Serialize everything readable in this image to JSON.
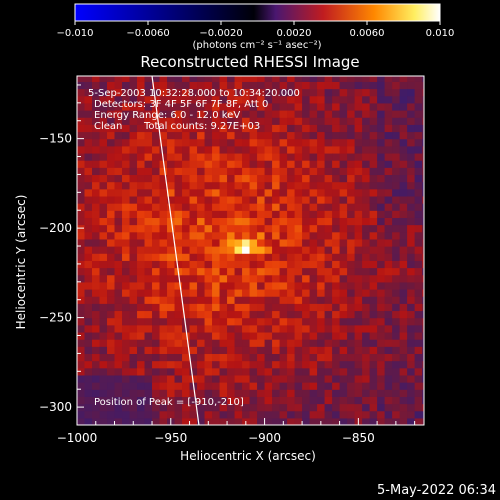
{
  "chart_data": {
    "type": "heatmap",
    "title": "Reconstructed RHESSI Image",
    "xlabel": "Heliocentric X (arcsec)",
    "ylabel": "Heliocentric Y (arcsec)",
    "xlim": [
      -1000,
      -815
    ],
    "ylim": [
      -310,
      -115
    ],
    "x_ticks": [
      "−1000",
      "−950",
      "−900",
      "−850"
    ],
    "x_tick_values": [
      -1000,
      -950,
      -900,
      -850
    ],
    "y_ticks": [
      "−150",
      "−200",
      "−250",
      "−300"
    ],
    "y_tick_values": [
      -150,
      -200,
      -250,
      -300
    ],
    "colorbar": {
      "min": -0.01,
      "max": 0.01,
      "ticks": [
        "−0.010",
        "−0.0060",
        "−0.0020",
        "0.0020",
        "0.0060",
        "0.010"
      ],
      "tick_values": [
        -0.01,
        -0.006,
        -0.002,
        0.002,
        0.006,
        0.01
      ],
      "units": "(photons cm⁻² s⁻¹ asec⁻²)",
      "colormap": [
        "#0000ff",
        "#000000",
        "#5a1a8a",
        "#c81e1e",
        "#ff8c00",
        "#ffff80",
        "#ffffff"
      ]
    },
    "annotations": {
      "time": "5-Sep-2003 10:32:28.000 to 10:34:20.000",
      "detectors": "Detectors: 3F 4F 5F 6F 7F 8F, Att 0",
      "energy": "Energy Range: 6.0 - 12.0 keV",
      "method": "Clean",
      "counts": "Total counts: 9.27E+03",
      "peak": "Position of Peak = [-910,-210]"
    },
    "peak": {
      "x": -910,
      "y": -210,
      "value": 0.01
    },
    "limb_x_at_top": -960,
    "limb_x_at_bottom": -935
  },
  "footer": {
    "date": "5-May-2022 06:34"
  }
}
